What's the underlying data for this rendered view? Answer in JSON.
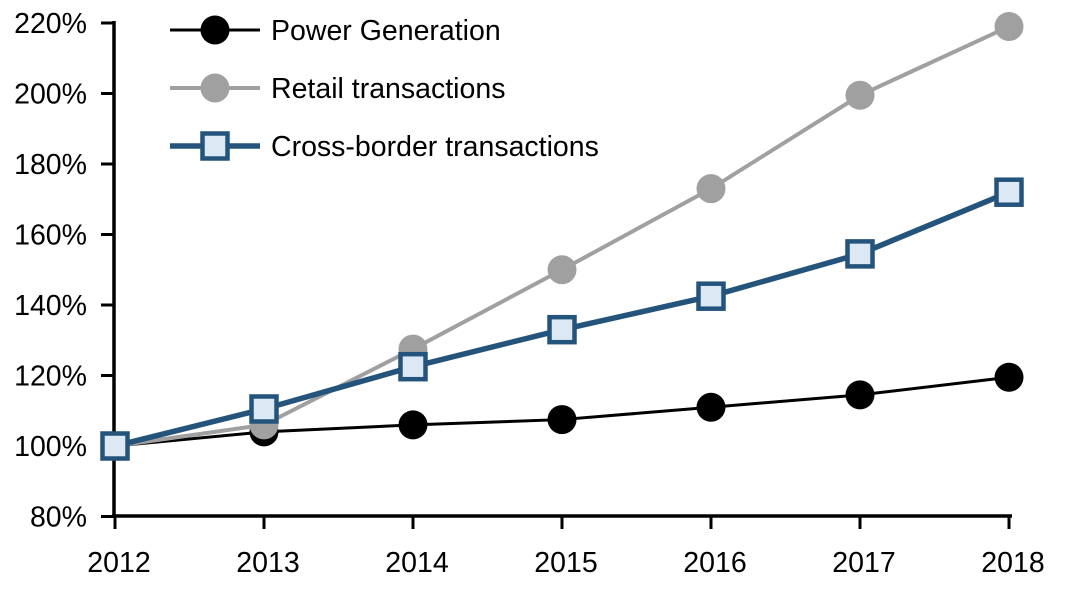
{
  "chart_data": {
    "type": "line",
    "title": "",
    "xlabel": "",
    "ylabel": "",
    "x_labels": [
      "2012",
      "2013",
      "2014",
      "2015",
      "2016",
      "2017",
      "2018"
    ],
    "y_ticks": [
      {
        "label": "220%",
        "value": 220
      },
      {
        "label": "200%",
        "value": 200
      },
      {
        "label": "180%",
        "value": 180
      },
      {
        "label": "160%",
        "value": 160
      },
      {
        "label": "140%",
        "value": 140
      },
      {
        "label": "120%",
        "value": 120
      },
      {
        "label": "100%",
        "value": 100
      },
      {
        "label": "80%",
        "value": 80
      }
    ],
    "ylim": [
      80,
      220
    ],
    "grid": false,
    "legend_position": "top-left",
    "series": [
      {
        "name": "Power Generation",
        "marker": "circle",
        "line_color": "#000000",
        "marker_fill": "#000000",
        "marker_stroke": "#000000",
        "line_width": 3,
        "marker_size": 14.5,
        "values": [
          100,
          104,
          106,
          107.5,
          111,
          114.5,
          119.5
        ]
      },
      {
        "name": "Retail transactions",
        "marker": "circle",
        "line_color": "#A0A0A0",
        "marker_fill": "#A0A0A0",
        "marker_stroke": "#A0A0A0",
        "line_width": 4,
        "marker_size": 14.5,
        "values": [
          100,
          106,
          127.5,
          150,
          173,
          199.5,
          219
        ]
      },
      {
        "name": "Cross-border transactions",
        "marker": "square",
        "line_color": "#24547C",
        "marker_fill": "#DCE9F5",
        "marker_stroke": "#24547C",
        "line_width": 5.5,
        "marker_size": 14.5,
        "values": [
          100,
          110.5,
          122.5,
          133,
          142.5,
          154.5,
          172
        ]
      }
    ],
    "colors": {
      "axis": "#000000",
      "text": "#000000",
      "background": "#FFFFFF"
    }
  }
}
